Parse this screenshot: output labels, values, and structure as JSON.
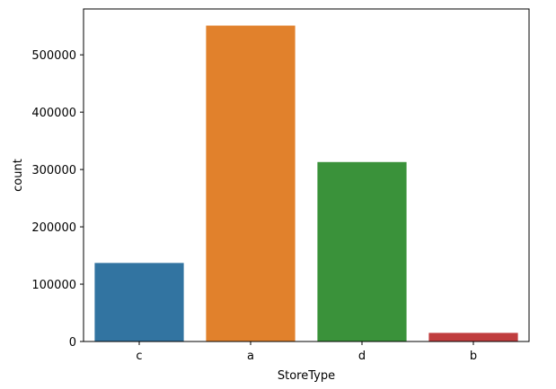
{
  "chart_data": {
    "type": "bar",
    "title": "",
    "xlabel": "StoreType",
    "ylabel": "count",
    "categories": [
      "c",
      "a",
      "d",
      "b"
    ],
    "values": [
      137000,
      551000,
      313000,
      15000
    ],
    "colors": [
      "#3274a1",
      "#e1812c",
      "#3a923a",
      "#c03d3e"
    ],
    "ylim": [
      0,
      580000
    ],
    "yticks": [
      0,
      100000,
      200000,
      300000,
      400000,
      500000
    ],
    "ytick_labels": [
      "0",
      "100000",
      "200000",
      "300000",
      "400000",
      "500000"
    ],
    "grid": false,
    "legend": "none"
  }
}
